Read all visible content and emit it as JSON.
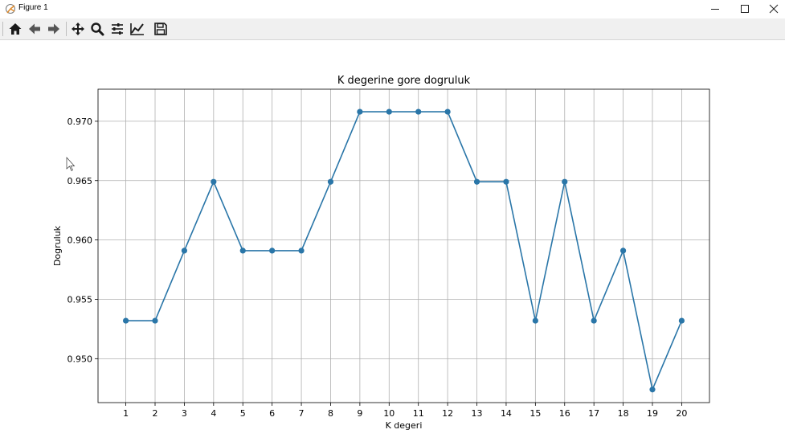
{
  "window": {
    "title": "Figure 1"
  },
  "toolbar": {
    "buttons": [
      {
        "name": "home-icon",
        "label": "Home"
      },
      {
        "name": "back-arrow-icon",
        "label": "Back"
      },
      {
        "name": "forward-arrow-icon",
        "label": "Forward"
      },
      {
        "name": "pan-icon",
        "label": "Pan"
      },
      {
        "name": "zoom-icon",
        "label": "Zoom"
      },
      {
        "name": "subplots-icon",
        "label": "Configure subplots"
      },
      {
        "name": "edit-curves-icon",
        "label": "Edit axis, curve and image parameters"
      },
      {
        "name": "save-icon",
        "label": "Save the figure"
      }
    ]
  },
  "chart_data": {
    "type": "line",
    "title": "K degerine gore dogruluk",
    "xlabel": "K degeri",
    "ylabel": "Dogruluk",
    "x": [
      1,
      2,
      3,
      4,
      5,
      6,
      7,
      8,
      9,
      10,
      11,
      12,
      13,
      14,
      15,
      16,
      17,
      18,
      19,
      20
    ],
    "series": [
      {
        "values": [
          0.9532,
          0.9532,
          0.9591,
          0.9649,
          0.9591,
          0.9591,
          0.9591,
          0.9649,
          0.9708,
          0.9708,
          0.9708,
          0.9708,
          0.9649,
          0.9649,
          0.9532,
          0.9649,
          0.9532,
          0.9591,
          0.9474,
          0.9532
        ],
        "color": "#2a76a8",
        "marker": "circle"
      }
    ],
    "xticks": [
      "1",
      "2",
      "3",
      "4",
      "5",
      "6",
      "7",
      "8",
      "9",
      "10",
      "11",
      "12",
      "13",
      "14",
      "15",
      "16",
      "17",
      "18",
      "19",
      "20"
    ],
    "yticks": [
      "0.950",
      "0.955",
      "0.960",
      "0.965",
      "0.970"
    ],
    "ytick_values": [
      0.95,
      0.955,
      0.96,
      0.965,
      0.97
    ],
    "xlim": [
      0.05,
      20.95
    ],
    "ylim": [
      0.9463,
      0.9727
    ],
    "grid": true
  }
}
